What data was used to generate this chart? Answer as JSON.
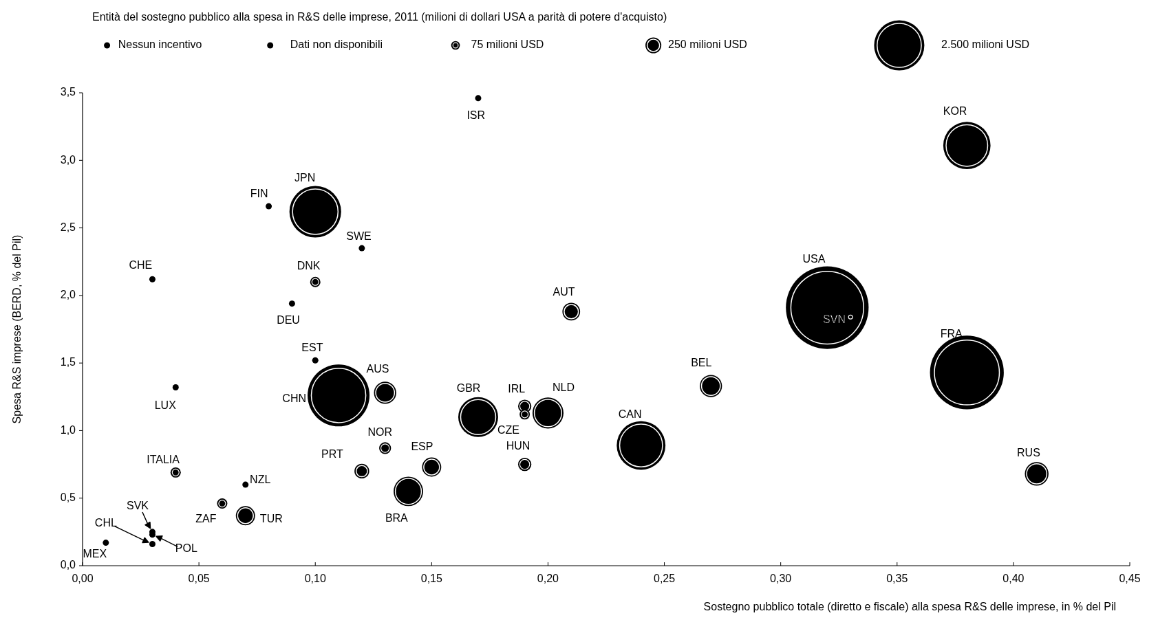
{
  "chart_data": {
    "type": "bubble",
    "title": "Entità del sostegno pubblico alla spesa in R&S delle imprese, 2011 (milioni di dollari USA a parità di potere d'acquisto)",
    "xlabel": "Sostegno pubblico totale (diretto e fiscale) alla spesa R&S delle imprese, in % del Pil",
    "ylabel": "Spesa R&S imprese (BERD, % del Pil)",
    "xlim": [
      0,
      0.45
    ],
    "xticks": [
      {
        "value": 0,
        "label": "0,00"
      },
      {
        "value": 0.05,
        "label": "0,05"
      },
      {
        "value": 0.1,
        "label": "0,10"
      },
      {
        "value": 0.15,
        "label": "0,15"
      },
      {
        "value": 0.2,
        "label": "0,20"
      },
      {
        "value": 0.25,
        "label": "0,25"
      },
      {
        "value": 0.3,
        "label": "0,30"
      },
      {
        "value": 0.35,
        "label": "0,35"
      },
      {
        "value": 0.4,
        "label": "0,40"
      },
      {
        "value": 0.45,
        "label": "0,45"
      }
    ],
    "ylim": [
      0,
      3.5
    ],
    "yticks": [
      {
        "value": 0,
        "label": "0,0"
      },
      {
        "value": 0.5,
        "label": "0,5"
      },
      {
        "value": 1,
        "label": "1,0"
      },
      {
        "value": 1.5,
        "label": "1,5"
      },
      {
        "value": 2,
        "label": "2,0"
      },
      {
        "value": 2.5,
        "label": "2,5"
      },
      {
        "value": 3,
        "label": "3,0"
      },
      {
        "value": 3.5,
        "label": "3,5"
      }
    ],
    "size_legend": [
      {
        "value": 75,
        "label": "75 milioni USD"
      },
      {
        "value": 250,
        "label": "250 milioni USD"
      },
      {
        "value": 2500,
        "label": "2.500 milioni USD"
      }
    ],
    "legend": "top",
    "marker": "circle",
    "series": [
      {
        "name": "Nessun incentivo",
        "type": "scatter",
        "color": "#000000",
        "x": [
          0.08,
          0.12,
          0.03,
          0.09,
          0.1,
          0.04,
          0.07,
          0.01,
          0.03,
          0.03,
          0.03
        ],
        "values": [
          2.66,
          2.35,
          2.12,
          1.94,
          1.52,
          1.32,
          0.6,
          0.17,
          0.25,
          0.23,
          0.16
        ],
        "value_labels": [
          "FIN",
          "SWE",
          "CHE",
          "DEU",
          "EST",
          "LUX",
          "NZL",
          "MEX",
          "SVK",
          "POL",
          "CHL"
        ]
      },
      {
        "name": "Dati non disponibili",
        "type": "scatter",
        "color": "#000000",
        "x": [
          0.17
        ],
        "values": [
          3.46
        ],
        "value_labels": [
          "ISR"
        ]
      },
      {
        "color": "#000000",
        "x": [
          0.1,
          0.11,
          0.13,
          0.1,
          0.21,
          0.04,
          0.06,
          0.07,
          0.12,
          0.13,
          0.15,
          0.14,
          0.17,
          0.19,
          0.19,
          0.2,
          0.19,
          0.24,
          0.27,
          0.32,
          0.33,
          0.38,
          0.38,
          0.41
        ],
        "values": [
          2.62,
          1.26,
          1.28,
          2.1,
          1.88,
          0.69,
          0.46,
          0.37,
          0.7,
          0.87,
          0.73,
          0.55,
          1.1,
          1.18,
          1.12,
          1.13,
          0.75,
          0.89,
          1.33,
          1.91,
          1.84,
          3.11,
          1.43,
          0.68
        ],
        "sizes": [
          2650,
          3800,
          490,
          105,
          310,
          105,
          105,
          365,
          215,
          140,
          365,
          865,
          1575,
          175,
          105,
          955,
          175,
          2355,
          490,
          6780,
          55,
          2215,
          5400,
          555
        ],
        "value_labels": [
          "JPN",
          "CHN",
          "AUS",
          "DNK",
          "AUT",
          "ITALIA",
          "ZAF",
          "TUR",
          "PRT",
          "NOR",
          "ESP",
          "BRA",
          "GBR",
          "IRL",
          "CZE",
          "NLD",
          "HUN",
          "CAN",
          "BEL",
          "USA",
          "SVN",
          "KOR",
          "FRA",
          "RUS"
        ]
      }
    ]
  }
}
